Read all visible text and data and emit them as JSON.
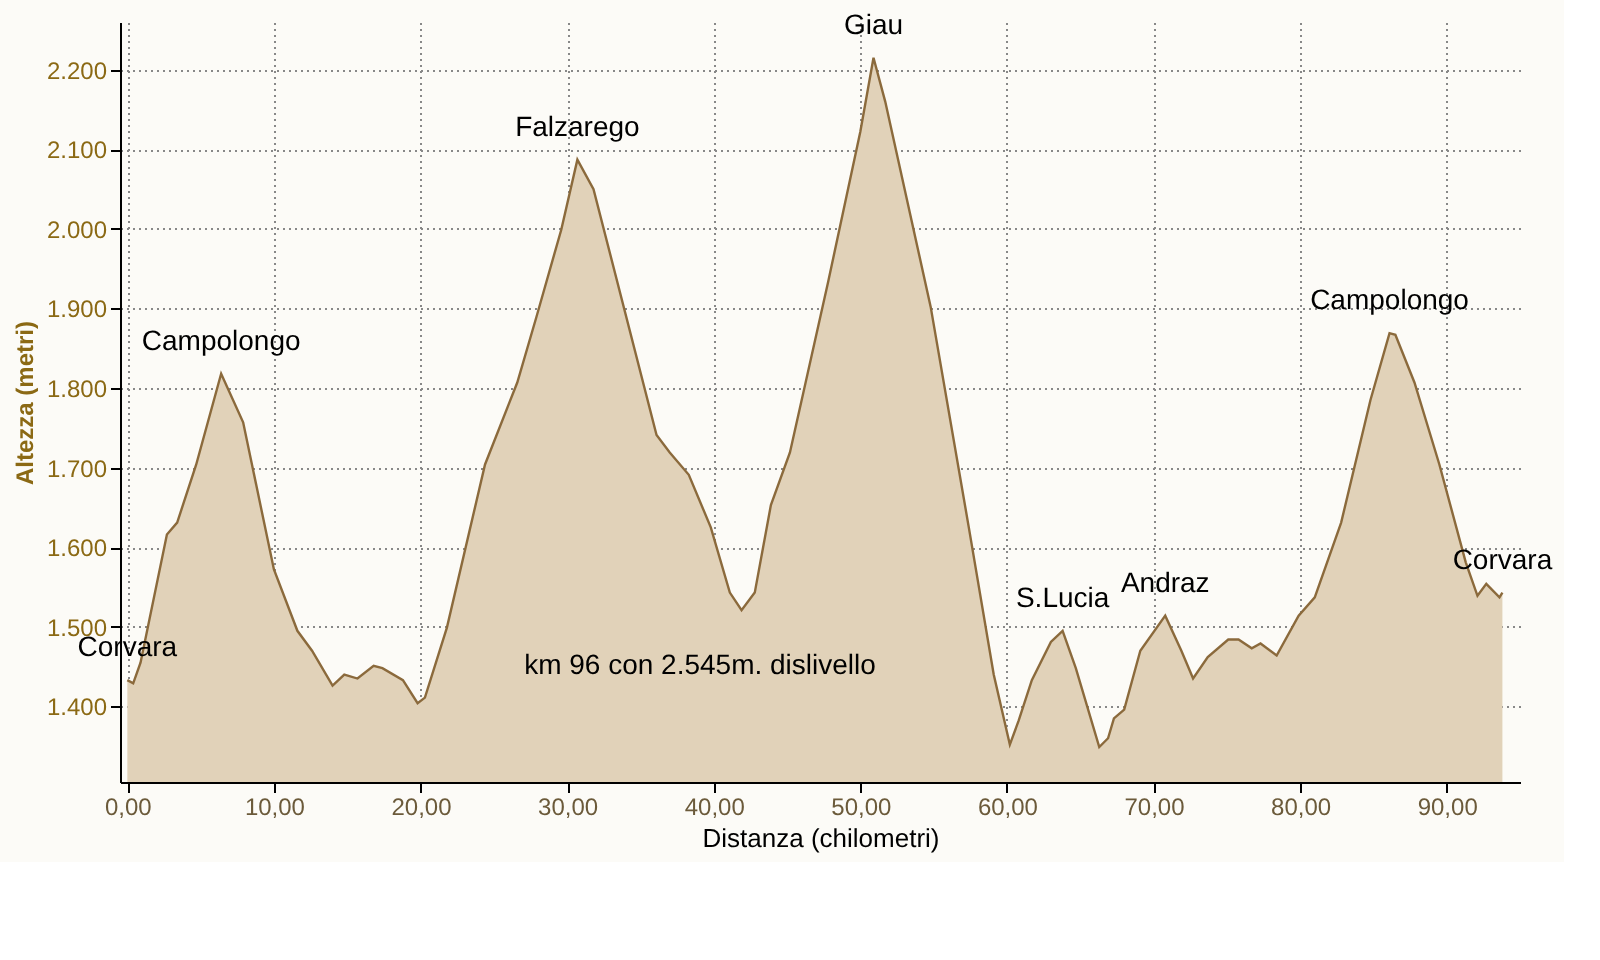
{
  "chart_data": {
    "type": "area",
    "xlabel": "Distanza (chilometri)",
    "ylabel": "Altezza (metri)",
    "xlim": [
      -0.5,
      95
    ],
    "ylim": [
      1305,
      2260
    ],
    "xticks": [
      {
        "value": 0,
        "label": "0,00"
      },
      {
        "value": 10,
        "label": "10,00"
      },
      {
        "value": 20,
        "label": "20,00"
      },
      {
        "value": 30,
        "label": "30,00"
      },
      {
        "value": 40,
        "label": "40,00"
      },
      {
        "value": 50,
        "label": "50,00"
      },
      {
        "value": 60,
        "label": "60,00"
      },
      {
        "value": 70,
        "label": "70,00"
      },
      {
        "value": 80,
        "label": "80,00"
      },
      {
        "value": 90,
        "label": "90,00"
      }
    ],
    "yticks": [
      {
        "value": 1400,
        "label": "1.400"
      },
      {
        "value": 1500,
        "label": "1.500"
      },
      {
        "value": 1600,
        "label": "1.600"
      },
      {
        "value": 1700,
        "label": "1.700"
      },
      {
        "value": 1800,
        "label": "1.800"
      },
      {
        "value": 1900,
        "label": "1.900"
      },
      {
        "value": 2000,
        "label": "2.000"
      },
      {
        "value": 2100,
        "label": "2.100"
      },
      {
        "value": 2200,
        "label": "2.200"
      }
    ],
    "grid": true,
    "series": [
      {
        "color": "#e1d2b9",
        "x": [
          0,
          0.4,
          0.9,
          2.7,
          3.4,
          4.7,
          6.4,
          7.9,
          10,
          11.6,
          12.6,
          14,
          14.8,
          15.7,
          16.8,
          17.4,
          18.8,
          19.8,
          20.3,
          21.8,
          24.4,
          26.6,
          27.9,
          29.6,
          30.7,
          31.8,
          36.1,
          37,
          38.3,
          39.8,
          41.1,
          41.9,
          42.8,
          43.9,
          45.2,
          47.8,
          50,
          50.9,
          51.7,
          54.8,
          57.4,
          59.1,
          60.2,
          60.8,
          61.7,
          63,
          63.8,
          64.7,
          66.3,
          66.9,
          67.3,
          68,
          69.1,
          70.8,
          71.9,
          72.7,
          73.7,
          75.1,
          75.8,
          76.7,
          77.3,
          78.4,
          79.9,
          81,
          82.8,
          84.8,
          86.1,
          86.5,
          87.8,
          89.5,
          91.3,
          92.1,
          92.7,
          93.6,
          93.8
        ],
        "values": [
          1433,
          1429,
          1455,
          1616,
          1631,
          1704,
          1818,
          1757,
          1572,
          1495,
          1470,
          1426,
          1440,
          1435,
          1451,
          1448,
          1433,
          1404,
          1411,
          1499,
          1704,
          1807,
          1889,
          1999,
          2087,
          2050,
          1741,
          1719,
          1691,
          1625,
          1543,
          1521,
          1543,
          1653,
          1719,
          1933,
          2122,
          2215,
          2160,
          1902,
          1625,
          1440,
          1352,
          1382,
          1433,
          1481,
          1495,
          1448,
          1349,
          1360,
          1385,
          1396,
          1470,
          1514,
          1470,
          1435,
          1462,
          1484,
          1484,
          1473,
          1479,
          1464,
          1514,
          1537,
          1631,
          1785,
          1869,
          1867,
          1807,
          1704,
          1581,
          1539,
          1554,
          1537,
          1543
        ]
      }
    ],
    "annotations": [
      {
        "text": "Campolongo",
        "x": 6.4,
        "y": 1818
      },
      {
        "text": "Falzarego",
        "x": 30.7,
        "y": 2087
      },
      {
        "text": "Giau",
        "x": 50.9,
        "y": 2215
      },
      {
        "text": "S.Lucia",
        "x": 63.8,
        "y": 1495
      },
      {
        "text": "Andraz",
        "x": 70.8,
        "y": 1514
      },
      {
        "text": "Campolongo",
        "x": 86.1,
        "y": 1869
      },
      {
        "text": "Corvara",
        "x": 0,
        "y": 1433
      },
      {
        "text": "Corvara",
        "x": 93.8,
        "y": 1543
      },
      "km 96 con 2.545m. dislivello"
    ]
  }
}
